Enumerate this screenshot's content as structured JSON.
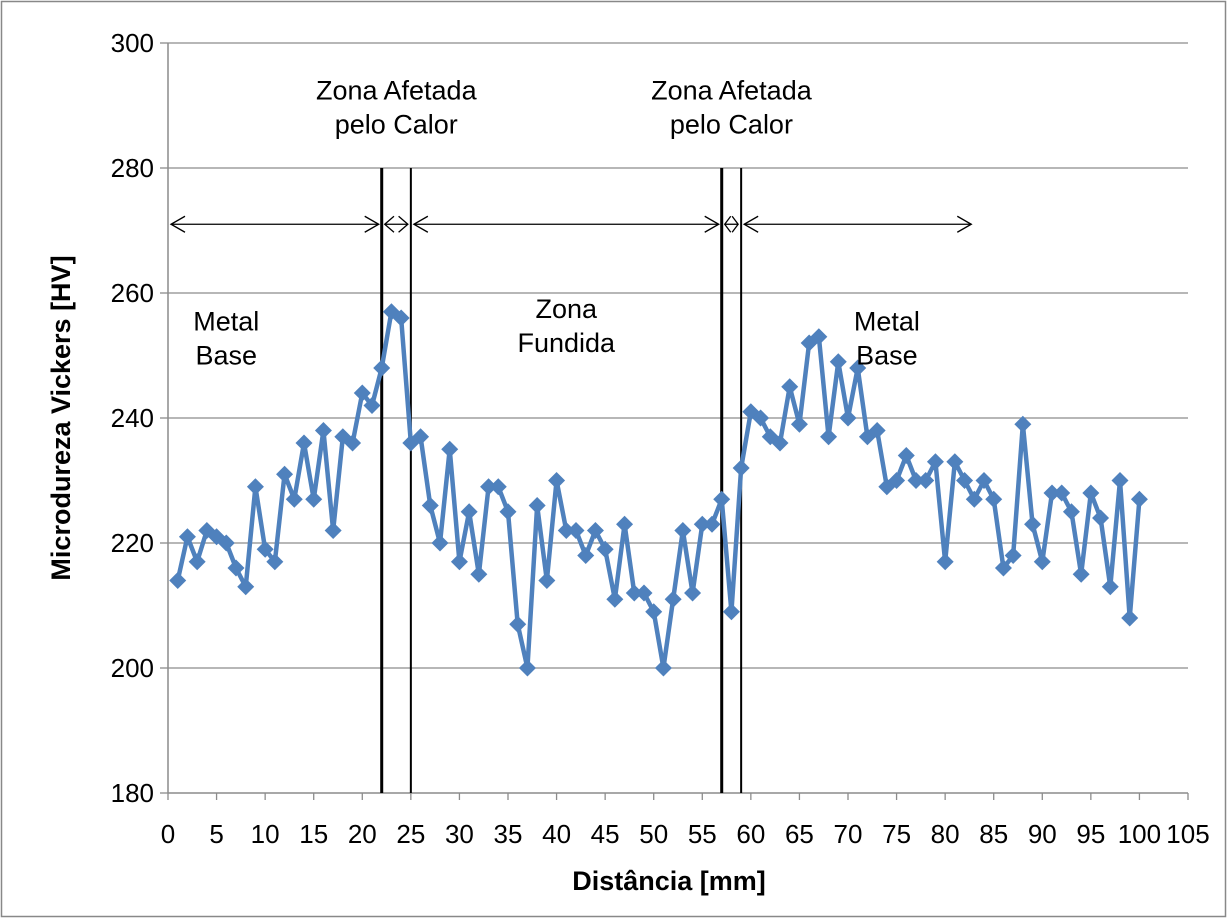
{
  "chart_data": {
    "type": "line",
    "title": "",
    "xlabel": "Distância [mm]",
    "ylabel": "Microdureza Vickers [HV]",
    "xlim": [
      0,
      105
    ],
    "ylim": [
      180,
      300
    ],
    "x_ticks": [
      0,
      5,
      10,
      15,
      20,
      25,
      30,
      35,
      40,
      45,
      50,
      55,
      60,
      65,
      70,
      75,
      80,
      85,
      90,
      95,
      100,
      105
    ],
    "y_ticks": [
      180,
      200,
      220,
      240,
      260,
      280,
      300
    ],
    "grid": "horizontal",
    "legend": "none",
    "series_color": "#4F81BD",
    "series": [
      {
        "x": [
          1,
          2,
          3,
          4,
          5,
          6,
          7,
          8,
          9,
          10,
          11,
          12,
          13,
          14,
          15,
          16,
          17,
          18,
          19,
          20,
          21,
          22,
          23,
          24,
          25,
          26,
          27,
          28,
          29,
          30,
          31,
          32,
          33,
          34,
          35,
          36,
          37,
          38,
          39,
          40,
          41,
          42,
          43,
          44,
          45,
          46,
          47,
          48,
          49,
          50,
          51,
          52,
          53,
          54,
          55,
          56,
          57,
          58,
          59,
          60,
          61,
          62,
          63,
          64,
          65,
          66,
          67,
          68,
          69,
          70,
          71,
          72,
          73,
          74,
          75,
          76,
          77,
          78,
          79,
          80,
          81,
          82,
          83,
          84,
          85,
          86,
          87,
          88,
          89,
          90,
          91,
          92,
          93,
          94,
          95,
          96,
          97,
          98,
          99,
          100
        ],
        "y": [
          214,
          221,
          217,
          222,
          221,
          220,
          216,
          213,
          229,
          219,
          217,
          231,
          227,
          236,
          227,
          238,
          222,
          237,
          236,
          244,
          242,
          248,
          257,
          256,
          236,
          237,
          226,
          220,
          235,
          217,
          225,
          215,
          229,
          229,
          225,
          207,
          200,
          226,
          214,
          230,
          222,
          222,
          218,
          222,
          219,
          211,
          223,
          212,
          212,
          209,
          200,
          211,
          222,
          212,
          223,
          223,
          227,
          209,
          232,
          241,
          240,
          237,
          236,
          245,
          239,
          252,
          253,
          237,
          249,
          240,
          248,
          237,
          238,
          229,
          230,
          234,
          230,
          230,
          233,
          217,
          233,
          230,
          227,
          230,
          227,
          216,
          218,
          239,
          223,
          217,
          228,
          228,
          225,
          215,
          228,
          224,
          213,
          230,
          208,
          227
        ]
      }
    ],
    "boundaries": [
      22,
      25,
      57,
      59
    ],
    "arrows": [
      {
        "from": 0,
        "to": 22
      },
      {
        "from": 22,
        "to": 25
      },
      {
        "from": 25,
        "to": 57
      },
      {
        "from": 57,
        "to": 59
      },
      {
        "from": 59,
        "to": 83
      }
    ],
    "zone_labels": [
      {
        "lines": [
          "Metal",
          "Base"
        ],
        "x": 6,
        "y": 254
      },
      {
        "lines": [
          "Zona",
          "Fundida"
        ],
        "x": 41,
        "y": 256
      },
      {
        "lines": [
          "Metal",
          "Base"
        ],
        "x": 74,
        "y": 254
      },
      {
        "lines": [
          "Zona Afetada",
          "pelo Calor"
        ],
        "x": 23.5,
        "y": 291
      },
      {
        "lines": [
          "Zona Afetada",
          "pelo Calor"
        ],
        "x": 58,
        "y": 291
      }
    ]
  }
}
